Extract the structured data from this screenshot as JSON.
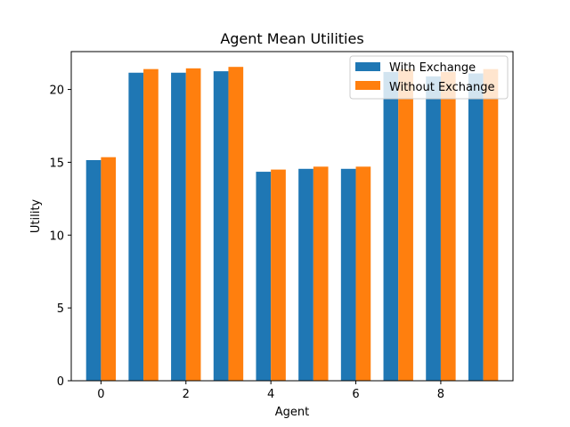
{
  "chart_data": {
    "type": "bar",
    "title": "Agent Mean Utilities",
    "xlabel": "Agent",
    "ylabel": "Utility",
    "categories": [
      0,
      1,
      2,
      3,
      4,
      5,
      6,
      7,
      8,
      9
    ],
    "xticks": [
      0,
      2,
      4,
      6,
      8
    ],
    "yticks": [
      0,
      5,
      10,
      15,
      20
    ],
    "xlim": [
      -0.7,
      9.7
    ],
    "ylim": [
      0,
      22.6
    ],
    "series": [
      {
        "name": "With Exchange",
        "color": "#1f77b4",
        "values": [
          15.15,
          21.15,
          21.15,
          21.25,
          14.35,
          14.55,
          14.55,
          21.2,
          20.9,
          21.1
        ]
      },
      {
        "name": "Without Exchange",
        "color": "#ff7f0e",
        "values": [
          15.35,
          21.4,
          21.45,
          21.55,
          14.5,
          14.7,
          14.7,
          21.4,
          21.2,
          21.4
        ]
      }
    ],
    "grid": false,
    "legend_position": "top-right"
  }
}
